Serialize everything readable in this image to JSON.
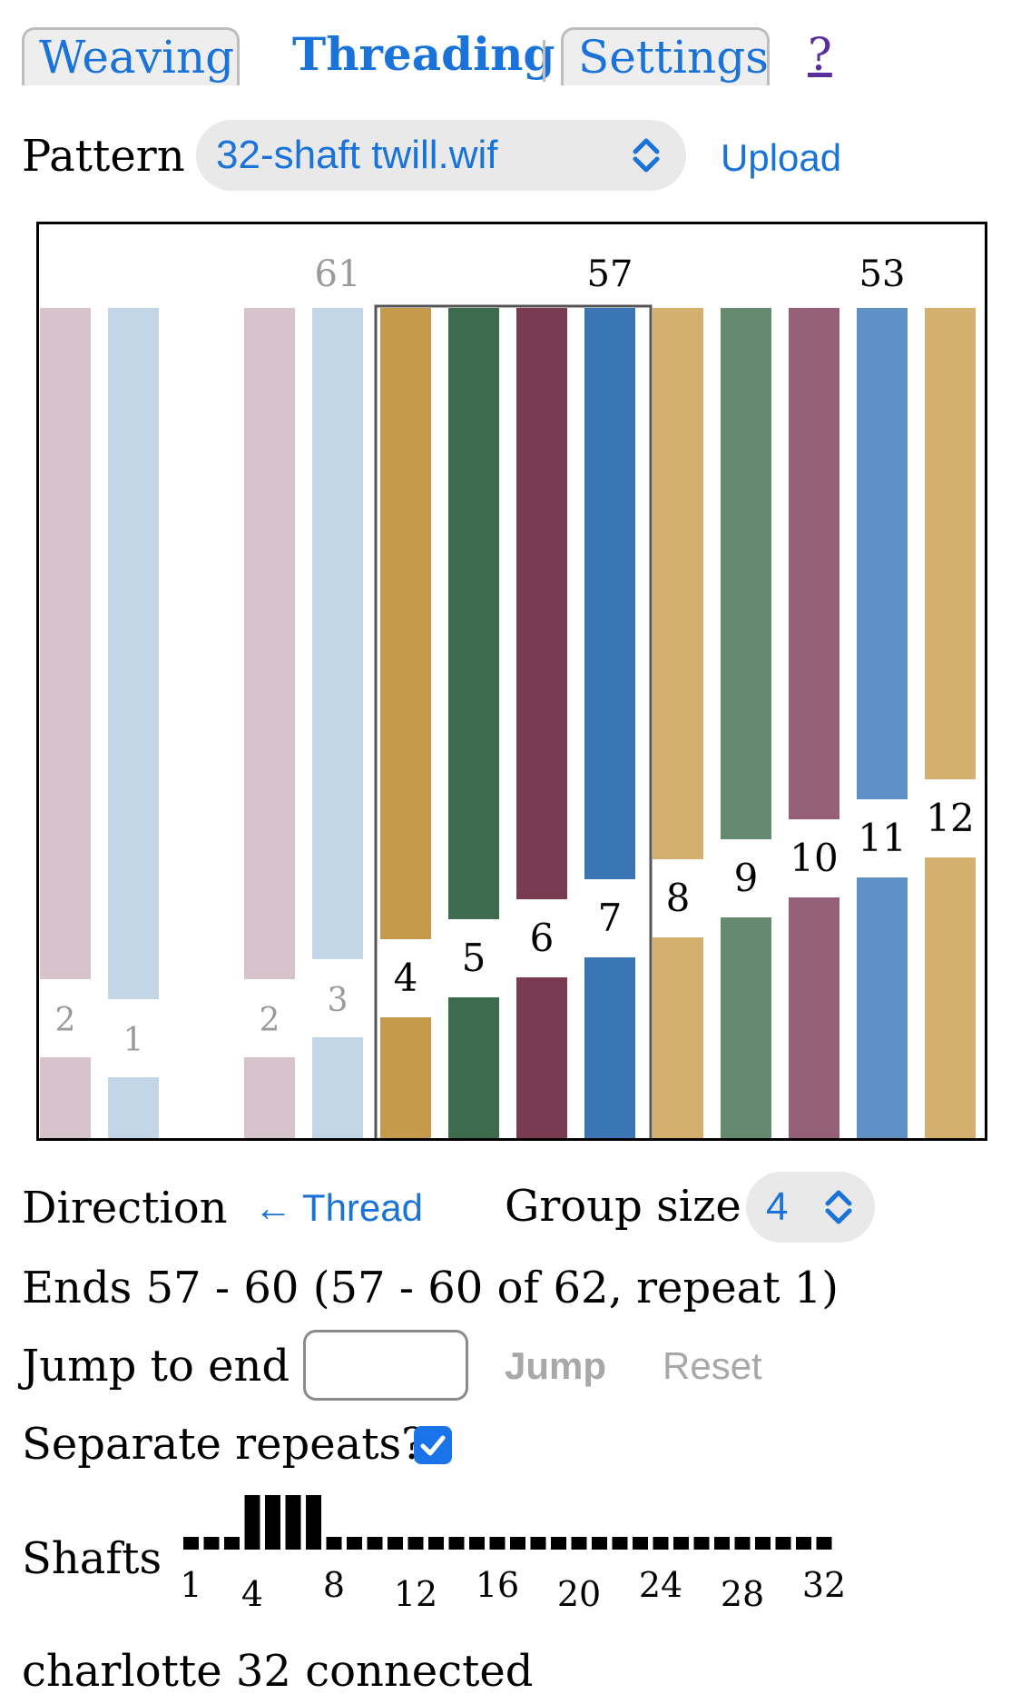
{
  "tabs": [
    {
      "label": "Weaving",
      "active": false
    },
    {
      "label": "Threading",
      "active": true
    },
    {
      "label": "Settings",
      "active": false
    }
  ],
  "help_label": "?",
  "pattern": {
    "label": "Pattern",
    "selected": "32-shaft twill.wif",
    "upload_label": "Upload"
  },
  "threading_view": {
    "group_start_end": 57,
    "group_size": 4,
    "end_labels": [
      {
        "text": "61",
        "faded": true
      },
      {
        "text": "57",
        "faded": false
      },
      {
        "text": "53",
        "faded": false
      }
    ],
    "threads": [
      {
        "shaft": 2,
        "color": "#d6c3cc",
        "faded": true
      },
      {
        "shaft": 1,
        "color": "#c3d6e8",
        "faded": true
      },
      {
        "shaft": null,
        "color": null,
        "faded": true
      },
      {
        "shaft": 2,
        "color": "#d6c3cc",
        "faded": true
      },
      {
        "shaft": 3,
        "color": "#c3d6e8",
        "faded": true
      },
      {
        "shaft": 4,
        "color": "#c59a4a",
        "faded": false
      },
      {
        "shaft": 5,
        "color": "#3d6b4d",
        "faded": false
      },
      {
        "shaft": 6,
        "color": "#7a3b52",
        "faded": false
      },
      {
        "shaft": 7,
        "color": "#3a76b4",
        "faded": false
      },
      {
        "shaft": 8,
        "color": "#d4b06e",
        "faded": false
      },
      {
        "shaft": 9,
        "color": "#658a70",
        "faded": false
      },
      {
        "shaft": 10,
        "color": "#956077",
        "faded": false
      },
      {
        "shaft": 11,
        "color": "#5f90c6",
        "faded": false
      },
      {
        "shaft": 12,
        "color": "#d4b06e",
        "faded": false
      }
    ]
  },
  "direction": {
    "label": "Direction",
    "value": "← Thread"
  },
  "group_size": {
    "label": "Group size",
    "value": "4"
  },
  "ends_status": "Ends 57 - 60 (57 - 60 of 62, repeat 1)",
  "jump": {
    "label": "Jump to end",
    "value": "",
    "jump_label": "Jump",
    "reset_label": "Reset"
  },
  "separate_repeats": {
    "label": "Separate repeats?",
    "checked": true
  },
  "shafts": {
    "label": "Shafts",
    "total": 32,
    "raised": [
      4,
      5,
      6,
      7
    ],
    "tick_labels": [
      "1",
      "4",
      "8",
      "12",
      "16",
      "20",
      "24",
      "28",
      "32"
    ]
  },
  "connection_status": "charlotte 32 connected"
}
